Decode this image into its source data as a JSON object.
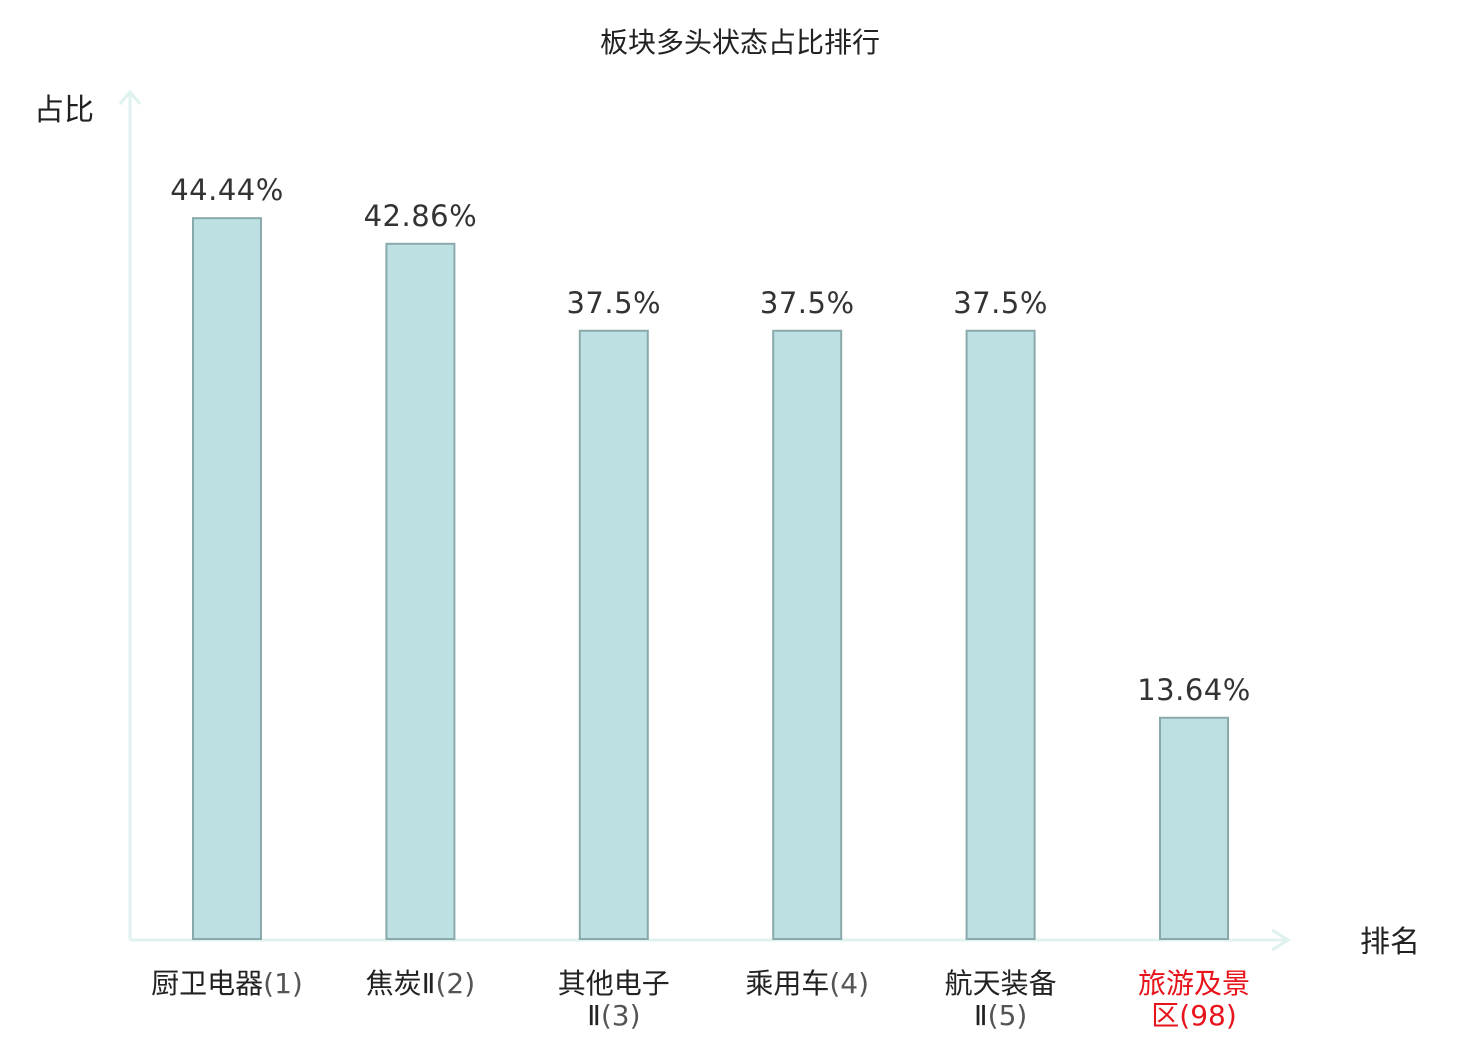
{
  "chart_data": {
    "type": "bar",
    "title": "板块多头状态占比排行",
    "xlabel": "排名",
    "ylabel": "占比",
    "categories": [
      {
        "name": "厨卫电器",
        "rank": "(1)",
        "lines": [
          [
            "厨卫电器",
            "(1)"
          ]
        ],
        "highlight": false
      },
      {
        "name": "焦炭Ⅱ",
        "rank": "(2)",
        "lines": [
          [
            "焦炭Ⅱ",
            "(2)"
          ]
        ],
        "highlight": false
      },
      {
        "name": "其他电子Ⅱ",
        "rank": "(3)",
        "lines": [
          [
            "其他电子",
            ""
          ],
          [
            "Ⅱ",
            "(3)"
          ]
        ],
        "highlight": false
      },
      {
        "name": "乘用车",
        "rank": "(4)",
        "lines": [
          [
            "乘用车",
            "(4)"
          ]
        ],
        "highlight": false
      },
      {
        "name": "航天装备Ⅱ",
        "rank": "(5)",
        "lines": [
          [
            "航天装备",
            ""
          ],
          [
            "Ⅱ",
            "(5)"
          ]
        ],
        "highlight": false
      },
      {
        "name": "旅游及景区",
        "rank": "(98)",
        "lines": [
          [
            "旅游及景",
            ""
          ],
          [
            "区",
            "(98)"
          ]
        ],
        "highlight": true
      }
    ],
    "values": [
      44.44,
      42.86,
      37.5,
      37.5,
      37.5,
      13.64
    ],
    "value_labels": [
      "44.44%",
      "42.86%",
      "37.5%",
      "37.5%",
      "37.5%",
      "13.64%"
    ],
    "ylim": [
      0,
      50
    ],
    "grid": false,
    "legend": "none",
    "colors": {
      "bar_fill": "#bde1e3",
      "bar_stroke": "#8aa9aa",
      "axis": "#dff2ef",
      "text": "#222222",
      "rank_text": "#555555",
      "highlight": "#e8141c"
    }
  }
}
